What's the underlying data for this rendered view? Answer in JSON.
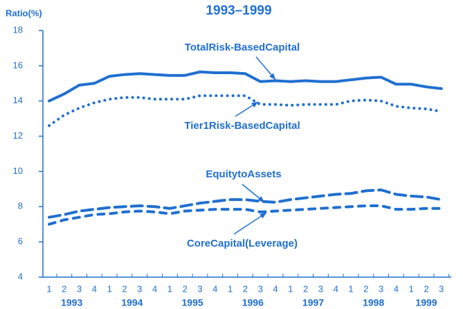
{
  "chart_data": {
    "type": "line",
    "title": "1993–1999",
    "y_label": "Ratio(%)",
    "categories": [
      "1",
      "2",
      "3",
      "4",
      "1",
      "2",
      "3",
      "4",
      "1",
      "2",
      "3",
      "4",
      "1",
      "2",
      "3",
      "4",
      "1",
      "2",
      "3",
      "4",
      "1",
      "2",
      "3",
      "4",
      "1",
      "2",
      "3"
    ],
    "years": [
      "1993",
      "1994",
      "1995",
      "1996",
      "1997",
      "1998",
      "1999"
    ],
    "ylim": [
      4,
      18
    ],
    "yticks": [
      4,
      6,
      8,
      10,
      12,
      14,
      16,
      18
    ],
    "series": [
      {
        "name": "TotalRisk-BasedCapital",
        "color": "#1f6fd0",
        "style": "solid",
        "values": [
          14.0,
          14.4,
          14.9,
          15.0,
          15.4,
          15.5,
          15.55,
          15.5,
          15.45,
          15.45,
          15.65,
          15.6,
          15.6,
          15.55,
          15.1,
          15.15,
          15.1,
          15.15,
          15.1,
          15.1,
          15.2,
          15.3,
          15.35,
          14.95,
          14.95,
          14.8,
          14.7
        ]
      },
      {
        "name": "Tier1Risk-BasedCapital",
        "color": "#1f6fd0",
        "style": "dotted",
        "values": [
          12.6,
          13.2,
          13.6,
          13.9,
          14.1,
          14.2,
          14.2,
          14.1,
          14.1,
          14.1,
          14.3,
          14.3,
          14.3,
          14.3,
          13.8,
          13.8,
          13.75,
          13.8,
          13.8,
          13.8,
          14.0,
          14.05,
          14.0,
          13.7,
          13.6,
          13.55,
          13.4
        ]
      },
      {
        "name": "EquitytoAssets",
        "color": "#1f6fd0",
        "style": "longdash",
        "values": [
          7.4,
          7.55,
          7.75,
          7.85,
          7.95,
          8.0,
          8.05,
          8.0,
          7.9,
          8.05,
          8.2,
          8.3,
          8.4,
          8.4,
          8.3,
          8.25,
          8.4,
          8.5,
          8.6,
          8.7,
          8.75,
          8.9,
          8.95,
          8.7,
          8.6,
          8.55,
          8.4
        ]
      },
      {
        "name": "CoreCapital(Leverage)",
        "color": "#1f6fd0",
        "style": "dashed",
        "values": [
          7.0,
          7.25,
          7.4,
          7.55,
          7.6,
          7.7,
          7.75,
          7.7,
          7.6,
          7.75,
          7.8,
          7.85,
          7.85,
          7.85,
          7.7,
          7.75,
          7.8,
          7.85,
          7.9,
          7.95,
          8.0,
          8.05,
          8.05,
          7.85,
          7.85,
          7.9,
          7.9
        ]
      }
    ]
  }
}
